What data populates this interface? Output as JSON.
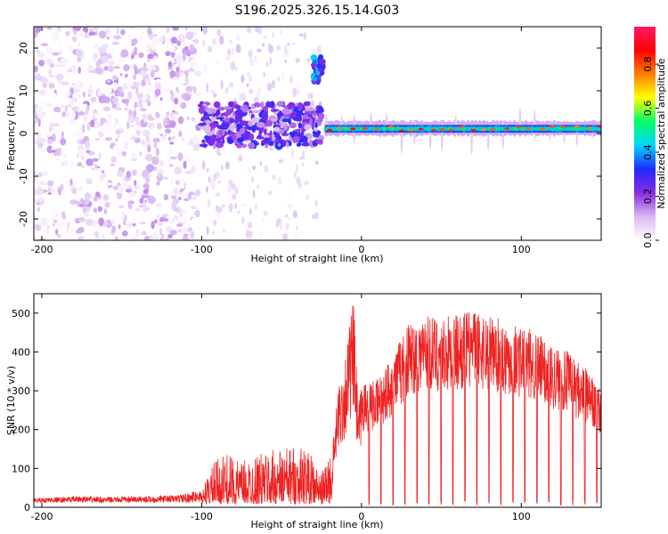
{
  "title": "S196.2025.326.15.14.G03",
  "chart_data": [
    {
      "type": "heatmap",
      "name": "spectrogram",
      "xlabel": "Height of straight line (km)",
      "ylabel": "Frequency (Hz)",
      "xlim": [
        -205,
        150
      ],
      "ylim": [
        -25,
        25
      ],
      "xticks": [
        -200,
        -100,
        0,
        100
      ],
      "yticks": [
        -20,
        -10,
        0,
        10,
        20
      ],
      "colorbar": {
        "label": "Normalized spectral amplitude",
        "range": [
          0,
          0.97
        ],
        "ticks": [
          0.0,
          0.2,
          0.4,
          0.6,
          0.8
        ],
        "tick_labels": [
          "0.0",
          "0.2",
          "0.4",
          "0.6",
          "0.8"
        ],
        "colors": [
          "#ffffff",
          "#d9b8f0",
          "#8a2be2",
          "#1f2bff",
          "#00d5ff",
          "#00ff66",
          "#ffff00",
          "#ff8000",
          "#ff0000",
          "#ff1a66"
        ]
      },
      "regions": [
        {
          "label": "scattered noise",
          "x": [
            -205,
            -102
          ],
          "freq": [
            -25,
            25
          ],
          "amplitude": [
            0.0,
            0.15
          ]
        },
        {
          "label": "weak blobs",
          "x": [
            -100,
            -25
          ],
          "freq": [
            -3,
            7
          ],
          "amplitude": [
            0.1,
            0.35
          ]
        },
        {
          "label": "spike",
          "x": [
            -30,
            -24
          ],
          "freq": [
            12,
            18
          ],
          "amplitude": [
            0.2,
            0.45
          ]
        },
        {
          "label": "carrier line",
          "x": [
            -22,
            150
          ],
          "freq": [
            -1,
            3
          ],
          "amplitude": [
            0.4,
            0.9
          ]
        }
      ]
    },
    {
      "type": "line",
      "name": "snr",
      "xlabel": "Height of straight line (km)",
      "ylabel": "SNR (10 * v/v)",
      "xlim": [
        -205,
        150
      ],
      "ylim": [
        0,
        550
      ],
      "xticks": [
        -200,
        -100,
        0,
        100
      ],
      "yticks": [
        0,
        100,
        200,
        300,
        400,
        500
      ],
      "color": "#ee2222",
      "series": [
        {
          "name": "SNR",
          "x": [
            -205,
            -190,
            -175,
            -160,
            -145,
            -130,
            -115,
            -100,
            -92,
            -85,
            -75,
            -65,
            -55,
            -45,
            -35,
            -25,
            -18,
            -14,
            -12,
            -8,
            -5,
            -2,
            0,
            10,
            20,
            30,
            40,
            50,
            60,
            70,
            80,
            90,
            100,
            110,
            120,
            130,
            140,
            150
          ],
          "values": [
            20,
            22,
            25,
            22,
            24,
            25,
            28,
            40,
            110,
            130,
            110,
            130,
            140,
            150,
            150,
            80,
            160,
            330,
            350,
            460,
            540,
            260,
            320,
            330,
            400,
            480,
            500,
            490,
            500,
            510,
            500,
            480,
            470,
            450,
            420,
            400,
            360,
            300
          ]
        }
      ]
    }
  ]
}
